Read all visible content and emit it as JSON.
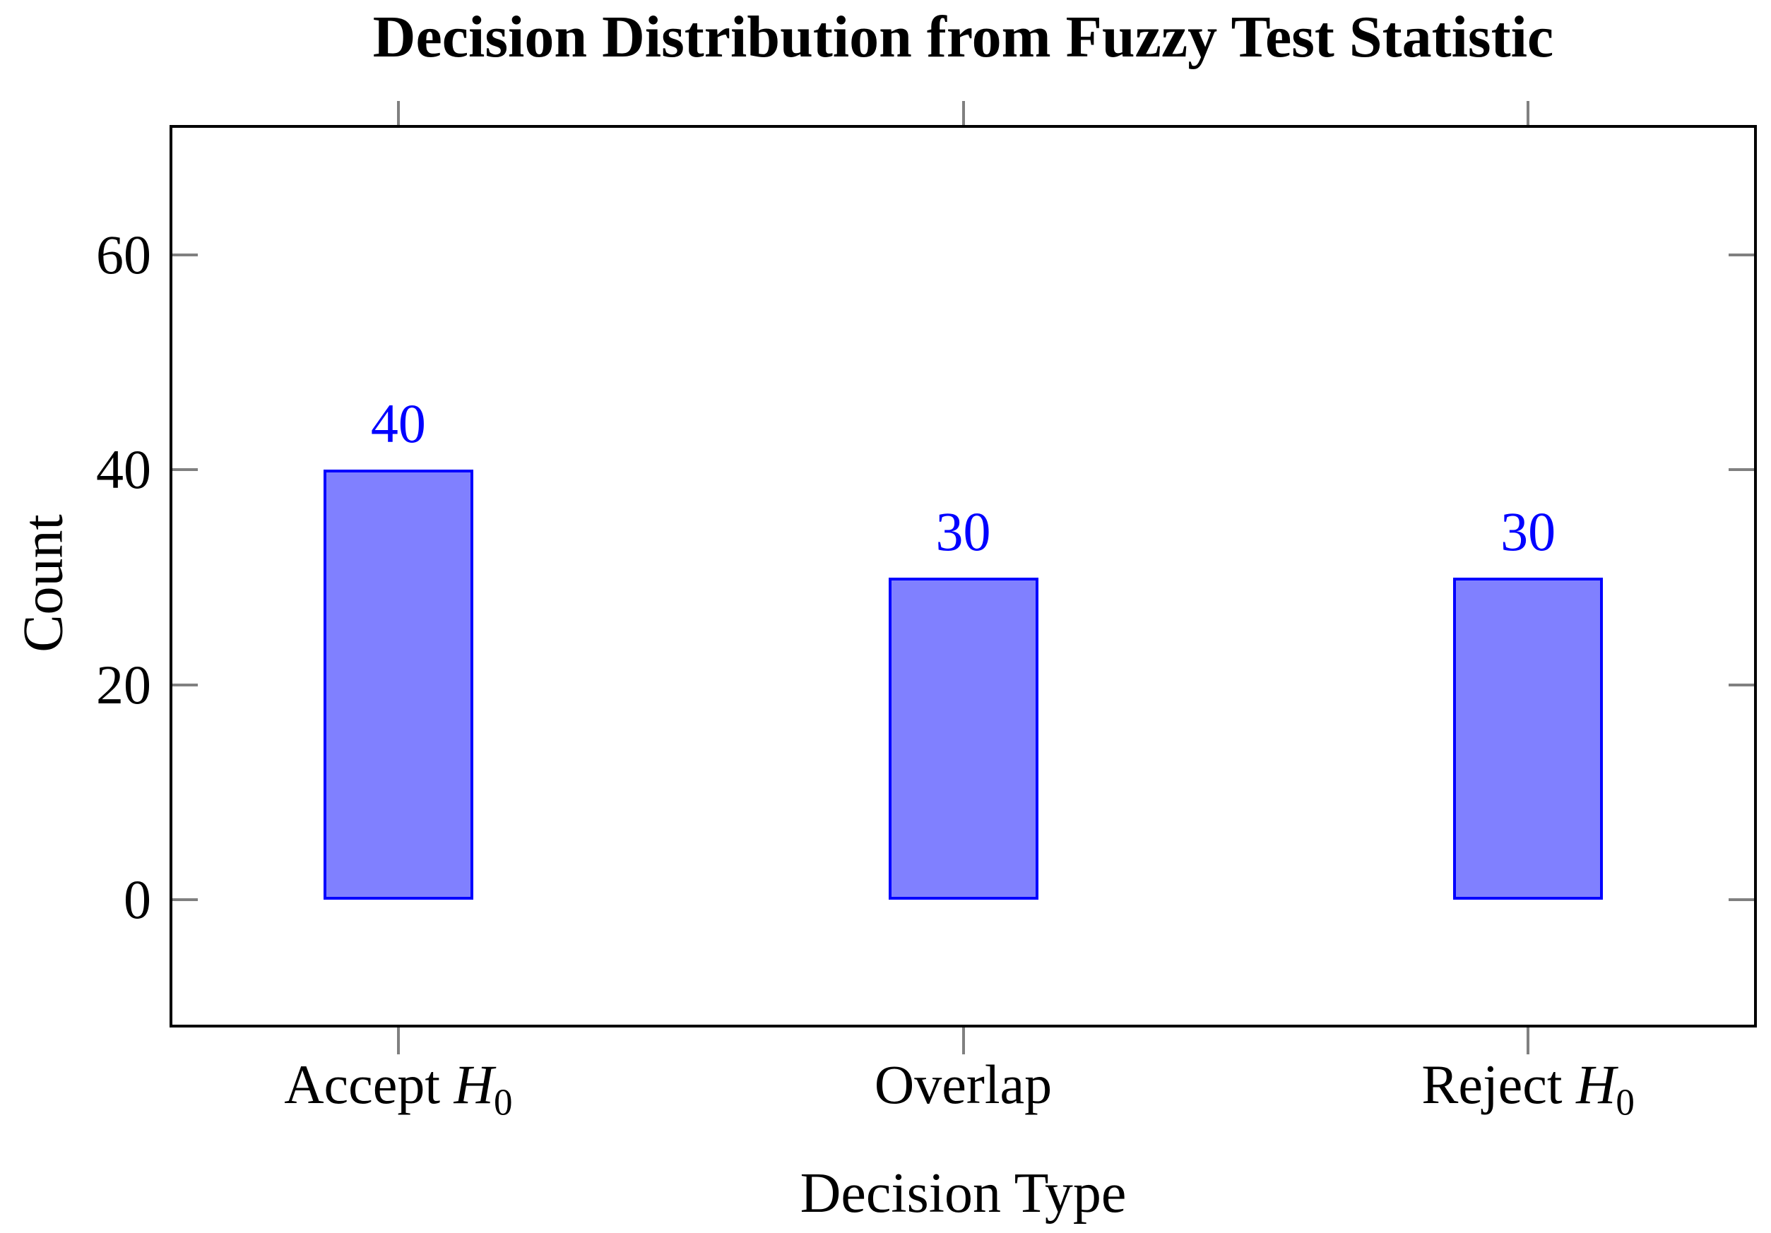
{
  "chart_data": {
    "type": "bar",
    "title": "Decision Distribution from Fuzzy Test Statistic",
    "xlabel": "Decision Type",
    "ylabel": "Count",
    "categories": [
      "Accept H0",
      "Overlap",
      "Reject H0"
    ],
    "category_parts": [
      {
        "text": "Accept ",
        "var": "H",
        "sub": "0"
      },
      {
        "text": "Overlap",
        "var": "",
        "sub": ""
      },
      {
        "text": "Reject ",
        "var": "H",
        "sub": "0"
      }
    ],
    "values": [
      40,
      30,
      30
    ],
    "bar_value_labels": [
      "40",
      "30",
      "30"
    ],
    "x_positions": [
      1,
      2,
      3
    ],
    "yticks": [
      0,
      20,
      40,
      60
    ],
    "ylim": [
      -11.6,
      71.8
    ],
    "xlim": [
      0.6,
      3.4
    ],
    "grid": false,
    "legend": "none",
    "colors": {
      "bar_fill": "#8080ff",
      "bar_border": "#0000ff",
      "value_label": "#0000ff",
      "tick_mark": "#808080",
      "axis_frame": "#000000",
      "text": "#000000",
      "background": "#ffffff"
    }
  }
}
